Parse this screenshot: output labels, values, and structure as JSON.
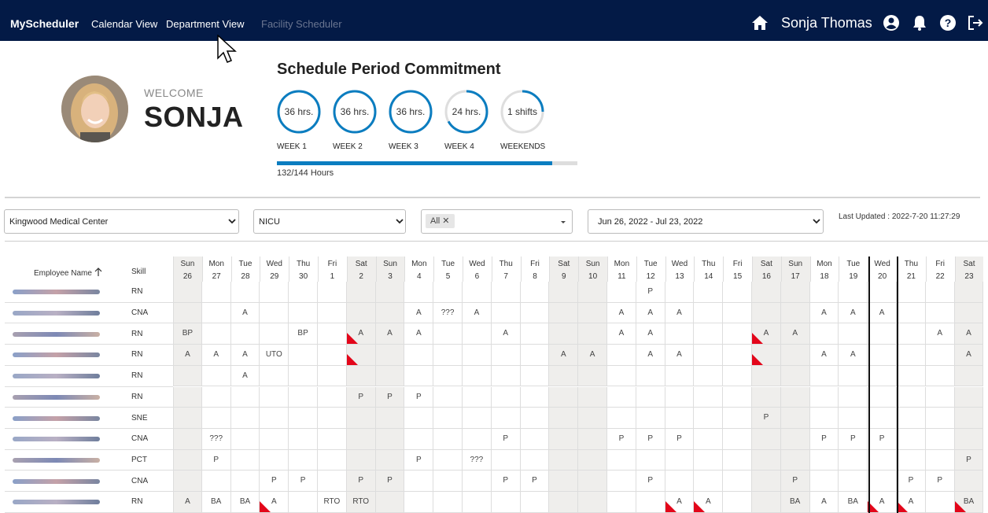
{
  "nav": {
    "brand": "MyScheduler",
    "links": [
      "Calendar View",
      "Department View",
      "Facility Scheduler"
    ],
    "user": "Sonja Thomas",
    "icons": [
      "home-icon",
      "user-circle-icon",
      "bell-icon",
      "help-icon",
      "logout-icon"
    ]
  },
  "hero": {
    "welcome": "WELCOME",
    "name": "SONJA",
    "title": "Schedule Period Commitment",
    "weeks": [
      {
        "value": "36 hrs.",
        "label": "WEEK 1",
        "fill": 1.0
      },
      {
        "value": "36 hrs.",
        "label": "WEEK 2",
        "fill": 1.0
      },
      {
        "value": "36 hrs.",
        "label": "WEEK 3",
        "fill": 1.0
      },
      {
        "value": "24 hrs.",
        "label": "WEEK 4",
        "fill": 0.67
      },
      {
        "value": "1 shifts",
        "label": "WEEKENDS",
        "fill": 0.25
      }
    ],
    "progress_text": "132/144 Hours",
    "progress_fraction": 0.917
  },
  "filters": {
    "facility": "Kingwood Medical Center",
    "department": "NICU",
    "skill_chip": "All",
    "date_range": "Jun 26, 2022 - Jul 23, 2022",
    "last_updated": "Last Updated : 2022-7-20 11:27:29"
  },
  "table": {
    "employee_header": "Employee Name",
    "skill_header": "Skill",
    "days": [
      {
        "dow": "Sun",
        "d": "26",
        "we": true
      },
      {
        "dow": "Mon",
        "d": "27",
        "we": false
      },
      {
        "dow": "Tue",
        "d": "28",
        "we": false
      },
      {
        "dow": "Wed",
        "d": "29",
        "we": false
      },
      {
        "dow": "Thu",
        "d": "30",
        "we": false
      },
      {
        "dow": "Fri",
        "d": "1",
        "we": false
      },
      {
        "dow": "Sat",
        "d": "2",
        "we": true
      },
      {
        "dow": "Sun",
        "d": "3",
        "we": true
      },
      {
        "dow": "Mon",
        "d": "4",
        "we": false
      },
      {
        "dow": "Tue",
        "d": "5",
        "we": false
      },
      {
        "dow": "Wed",
        "d": "6",
        "we": false
      },
      {
        "dow": "Thu",
        "d": "7",
        "we": false
      },
      {
        "dow": "Fri",
        "d": "8",
        "we": false
      },
      {
        "dow": "Sat",
        "d": "9",
        "we": true
      },
      {
        "dow": "Sun",
        "d": "10",
        "we": true
      },
      {
        "dow": "Mon",
        "d": "11",
        "we": false
      },
      {
        "dow": "Tue",
        "d": "12",
        "we": false
      },
      {
        "dow": "Wed",
        "d": "13",
        "we": false
      },
      {
        "dow": "Thu",
        "d": "14",
        "we": false
      },
      {
        "dow": "Fri",
        "d": "15",
        "we": false
      },
      {
        "dow": "Sat",
        "d": "16",
        "we": true
      },
      {
        "dow": "Sun",
        "d": "17",
        "we": true
      },
      {
        "dow": "Mon",
        "d": "18",
        "we": false
      },
      {
        "dow": "Tue",
        "d": "19",
        "we": false
      },
      {
        "dow": "Wed",
        "d": "20",
        "we": false
      },
      {
        "dow": "Thu",
        "d": "21",
        "we": false
      },
      {
        "dow": "Fri",
        "d": "22",
        "we": false
      },
      {
        "dow": "Sat",
        "d": "23",
        "we": true
      }
    ],
    "rows": [
      {
        "skill": "RN",
        "cells": [
          "",
          "",
          "",
          "",
          "",
          "",
          "",
          "",
          "",
          "",
          "",
          "",
          "",
          "",
          "",
          "",
          "P",
          "",
          "",
          "",
          "",
          "",
          "",
          "",
          "",
          "",
          "",
          ""
        ],
        "flags": []
      },
      {
        "skill": "CNA",
        "cells": [
          "",
          "",
          "A",
          "",
          "",
          "",
          "",
          "",
          "A",
          "???",
          "A",
          "",
          "",
          "",
          "",
          "A",
          "A",
          "A",
          "",
          "",
          "",
          "",
          "A",
          "A",
          "A",
          "",
          "",
          ""
        ],
        "flags": []
      },
      {
        "skill": "RN",
        "cells": [
          "BP",
          "",
          "",
          "",
          "BP",
          "",
          "A",
          "A",
          "A",
          "",
          "",
          "A",
          "",
          "",
          "",
          "A",
          "A",
          "",
          "",
          "",
          "A",
          "A",
          "",
          "",
          "",
          "",
          "A",
          "A"
        ],
        "flags": [
          6,
          20
        ]
      },
      {
        "skill": "RN",
        "cells": [
          "A",
          "A",
          "A",
          "UTO",
          "",
          "",
          "",
          "",
          "",
          "",
          "",
          "",
          "",
          "A",
          "A",
          "",
          "A",
          "A",
          "",
          "",
          "",
          "",
          "A",
          "A",
          "",
          "",
          "",
          "A"
        ],
        "flags": [
          6,
          20
        ]
      },
      {
        "skill": "RN",
        "cells": [
          "",
          "",
          "A",
          "",
          "",
          "",
          "",
          "",
          "",
          "",
          "",
          "",
          "",
          "",
          "",
          "",
          "",
          "",
          "",
          "",
          "",
          "",
          "",
          "",
          "",
          "",
          "",
          ""
        ],
        "flags": []
      },
      {
        "skill": "RN",
        "cells": [
          "",
          "",
          "",
          "",
          "",
          "",
          "P",
          "P",
          "P",
          "",
          "",
          "",
          "",
          "",
          "",
          "",
          "",
          "",
          "",
          "",
          "",
          "",
          "",
          "",
          "",
          "",
          "",
          ""
        ],
        "flags": []
      },
      {
        "skill": "SNE",
        "cells": [
          "",
          "",
          "",
          "",
          "",
          "",
          "",
          "",
          "",
          "",
          "",
          "",
          "",
          "",
          "",
          "",
          "",
          "",
          "",
          "",
          "P",
          "",
          "",
          "",
          "",
          "",
          "",
          ""
        ],
        "flags": []
      },
      {
        "skill": "CNA",
        "cells": [
          "",
          "???",
          "",
          "",
          "",
          "",
          "",
          "",
          "",
          "",
          "",
          "P",
          "",
          "",
          "",
          "P",
          "P",
          "P",
          "",
          "",
          "",
          "",
          "P",
          "P",
          "P",
          "",
          "",
          ""
        ],
        "flags": []
      },
      {
        "skill": "PCT",
        "cells": [
          "",
          "P",
          "",
          "",
          "",
          "",
          "",
          "",
          "P",
          "",
          "???",
          "",
          "",
          "",
          "",
          "",
          "",
          "",
          "",
          "",
          "",
          "",
          "",
          "",
          "",
          "",
          "",
          "P"
        ],
        "flags": []
      },
      {
        "skill": "CNA",
        "cells": [
          "",
          "",
          "",
          "P",
          "P",
          "",
          "P",
          "P",
          "",
          "",
          "",
          "P",
          "P",
          "",
          "",
          "",
          "P",
          "",
          "",
          "",
          "",
          "P",
          "",
          "",
          "",
          "P",
          "P",
          ""
        ],
        "flags": []
      },
      {
        "skill": "RN",
        "cells": [
          "A",
          "BA",
          "BA",
          "A",
          "",
          "RTO",
          "RTO",
          "",
          "",
          "",
          "",
          "",
          "",
          "",
          "",
          "",
          "",
          "A",
          "A",
          "",
          "",
          "BA",
          "A",
          "BA",
          "A",
          "A",
          "",
          "BA"
        ],
        "flags": [
          3,
          17,
          18,
          24,
          25,
          27
        ]
      }
    ]
  }
}
